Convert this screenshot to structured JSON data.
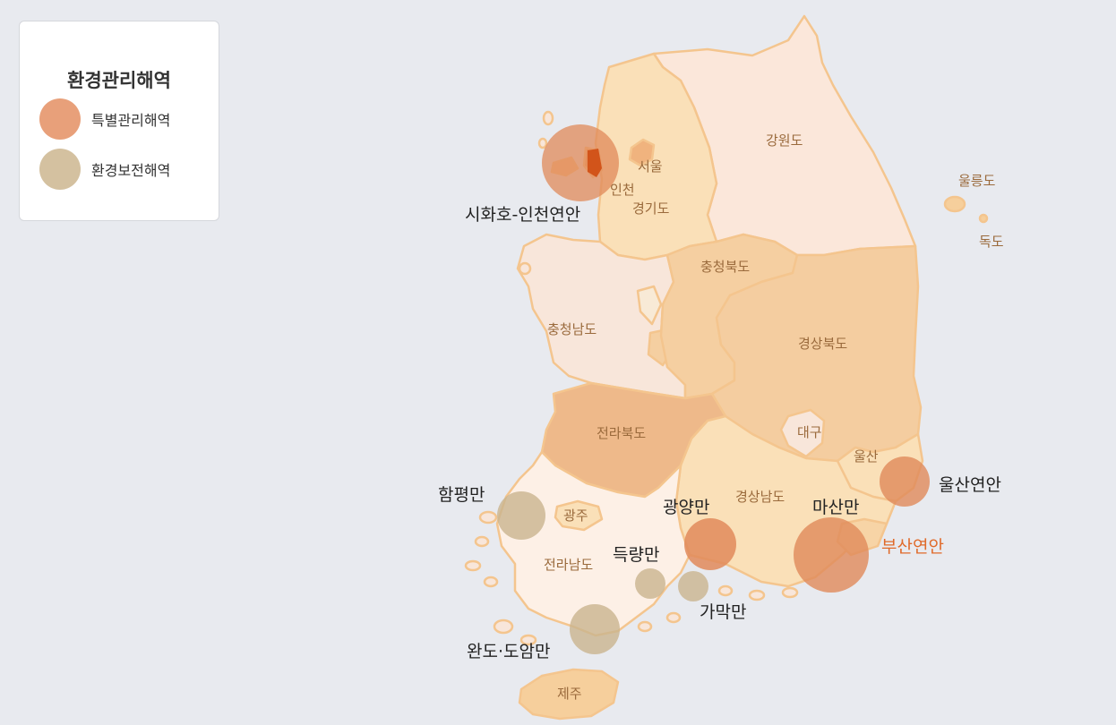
{
  "legend": {
    "title": "환경관리해역",
    "items": [
      {
        "label": "특별관리해역",
        "color": "#e8a07a"
      },
      {
        "label": "환경보전해역",
        "color": "#d4c1a0"
      }
    ]
  },
  "regions": {
    "seoul": "서울",
    "incheon": "인천",
    "gyeonggi": "경기도",
    "gangwon": "강원도",
    "chungbuk": "충청북도",
    "chungnam": "충청남도",
    "gyeongbuk": "경상북도",
    "jeonbuk": "전라북도",
    "daegu": "대구",
    "ulsan": "울산",
    "gyeongnam": "경상남도",
    "gwangju": "광주",
    "jeonnam": "전라남도",
    "jeju": "제주",
    "ulleung": "울릉도",
    "dokdo": "독도"
  },
  "areas": {
    "sihwa": "시화호-인천연안",
    "ulsan": "울산연안",
    "masan": "마산만",
    "busan": "부산연안",
    "gwangyang": "광양만",
    "hampyeong": "함평만",
    "deukryang": "득량만",
    "gamak": "가막만",
    "wando": "완도·도암만"
  },
  "colors": {
    "special": "#e0895a",
    "conservation": "#c9b48e",
    "busan_label": "#e06a2a",
    "gangwon": "#fbe7da",
    "gyeonggi": "#fae0b8",
    "chungnam": "#f8e6da",
    "chungbuk": "#f5cfa1",
    "gyeongbuk": "#f4cda0",
    "jeonbuk": "#eeb98a",
    "gyeongnam": "#fae0b8",
    "jeonnam": "#fdf0e6",
    "border": "#f4c58e"
  }
}
